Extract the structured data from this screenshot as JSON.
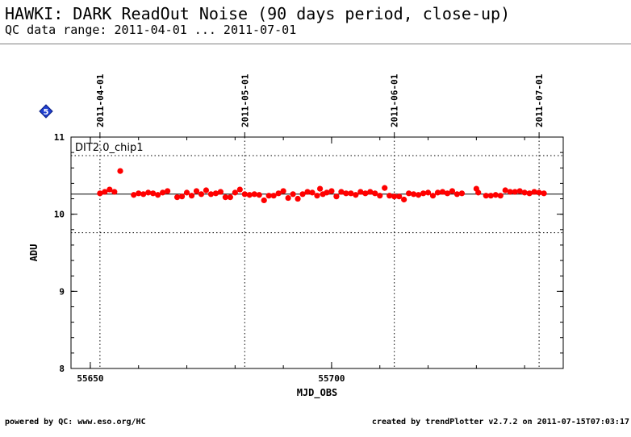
{
  "header": {
    "title": "HAWKI: DARK ReadOut Noise (90 days period, close-up)",
    "subtitle": "QC data range: 2011-04-01 ... 2011-07-01"
  },
  "badge": {
    "label": "5",
    "color": "#1f3fd0"
  },
  "footer": {
    "left": "powered by QC: www.eso.org/HC",
    "right": "created by trendPlotter v2.7.2 on 2011-07-15T07:03:17"
  },
  "chart_data": {
    "type": "scatter",
    "title": "",
    "panel_label": "DIT2.0_chip1",
    "xlabel": "MJD_OBS",
    "ylabel": "ADU",
    "xlim": [
      55646,
      55748
    ],
    "ylim": [
      8,
      11
    ],
    "x_ticks": [
      55650,
      55700
    ],
    "x_tick_labels": [
      "55650",
      "55700"
    ],
    "y_ticks": [
      8,
      9,
      10,
      11
    ],
    "y_tick_labels": [
      "8",
      "9",
      "10",
      "11"
    ],
    "date_markers": [
      {
        "label": "2011-04-01",
        "mjd": 55652
      },
      {
        "label": "2011-05-01",
        "mjd": 55682
      },
      {
        "label": "2011-06-01",
        "mjd": 55713
      },
      {
        "label": "2011-07-01",
        "mjd": 55743
      }
    ],
    "reference_lines": {
      "mean": 10.26,
      "upper": 10.76,
      "lower": 9.76
    },
    "point_color": "#ff0000",
    "series": [
      {
        "x": [
          55652.0,
          55653.0,
          55654.0,
          55655.0,
          55656.2,
          55659.0,
          55660.0,
          55661.0,
          55662.0,
          55663.0,
          55664.0,
          55665.0,
          55666.0,
          55668.0,
          55669.0,
          55670.0,
          55671.0,
          55672.0,
          55673.0,
          55674.0,
          55675.0,
          55676.0,
          55677.0,
          55678.0,
          55679.0,
          55680.0,
          55681.0,
          55682.0,
          55683.0,
          55684.0,
          55685.0,
          55686.0,
          55687.0,
          55688.0,
          55689.0,
          55690.0,
          55691.0,
          55692.0,
          55693.0,
          55694.0,
          55695.0,
          55696.0,
          55697.0,
          55697.6,
          55698.2,
          55699.0,
          55700.0,
          55701.0,
          55702.0,
          55703.0,
          55704.0,
          55705.0,
          55706.0,
          55707.0,
          55708.0,
          55709.0,
          55710.0,
          55711.0,
          55712.0,
          55713.0,
          55714.0,
          55715.0,
          55716.0,
          55717.0,
          55718.0,
          55719.0,
          55720.0,
          55721.0,
          55722.0,
          55723.0,
          55724.0,
          55725.0,
          55726.0,
          55727.0,
          55730.0,
          55730.4,
          55732.0,
          55733.0,
          55734.0,
          55735.0,
          55736.0,
          55737.0,
          55738.0,
          55739.0,
          55740.0,
          55741.0,
          55742.0,
          55743.0,
          55744.0
        ],
        "y": [
          10.27,
          10.29,
          10.32,
          10.29,
          10.56,
          10.25,
          10.27,
          10.26,
          10.28,
          10.27,
          10.25,
          10.28,
          10.3,
          10.22,
          10.23,
          10.28,
          10.24,
          10.3,
          10.26,
          10.31,
          10.26,
          10.27,
          10.29,
          10.22,
          10.22,
          10.28,
          10.32,
          10.26,
          10.25,
          10.26,
          10.25,
          10.18,
          10.24,
          10.24,
          10.27,
          10.3,
          10.21,
          10.26,
          10.2,
          10.26,
          10.29,
          10.28,
          10.24,
          10.33,
          10.26,
          10.28,
          10.3,
          10.23,
          10.29,
          10.27,
          10.27,
          10.25,
          10.29,
          10.27,
          10.29,
          10.27,
          10.24,
          10.34,
          10.24,
          10.23,
          10.23,
          10.19,
          10.27,
          10.26,
          10.25,
          10.27,
          10.28,
          10.24,
          10.28,
          10.29,
          10.27,
          10.3,
          10.26,
          10.27,
          10.33,
          10.28,
          10.24,
          10.24,
          10.25,
          10.24,
          10.31,
          10.29,
          10.29,
          10.3,
          10.28,
          10.27,
          10.29,
          10.28,
          10.27
        ]
      }
    ]
  }
}
